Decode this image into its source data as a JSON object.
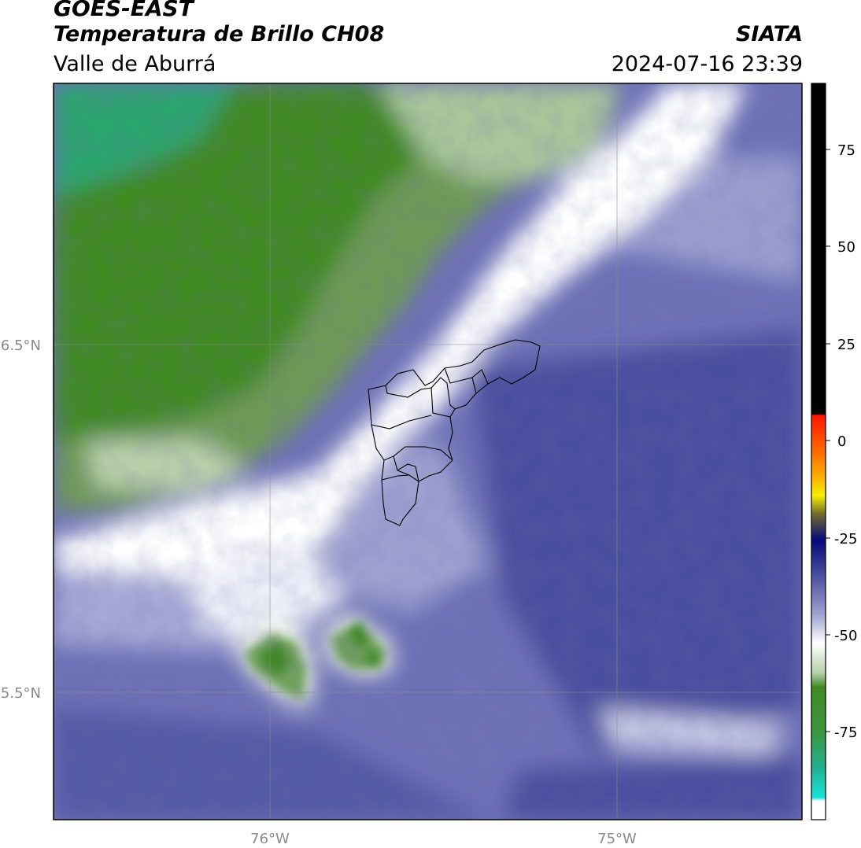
{
  "header": {
    "satellite": "GOES-EAST",
    "product": "Temperatura de Brillo CH08",
    "region": "Valle de Aburrá",
    "organization": "SIATA",
    "timestamp": "2024-07-16 23:39"
  },
  "map": {
    "lon_labels": [
      "76°W",
      "75°W"
    ],
    "lat_labels": [
      "6.5°N",
      "5.5°N"
    ],
    "gridlines": true
  },
  "colorbar": {
    "ticks": [
      "75",
      "50",
      "25",
      "0",
      "-25",
      "-50",
      "-75"
    ],
    "colors": {
      "black": "#000000",
      "red": "#ff1500",
      "orange": "#ff8a00",
      "yellow": "#f5f000",
      "olive": "#6e6b2a",
      "navy": "#050a7a",
      "indigo": "#3d4397",
      "lavender": "#9b9fcf",
      "white": "#ffffff",
      "green": "#3f8a24",
      "teal": "#22b08e",
      "cyan": "#17e5d9"
    }
  }
}
